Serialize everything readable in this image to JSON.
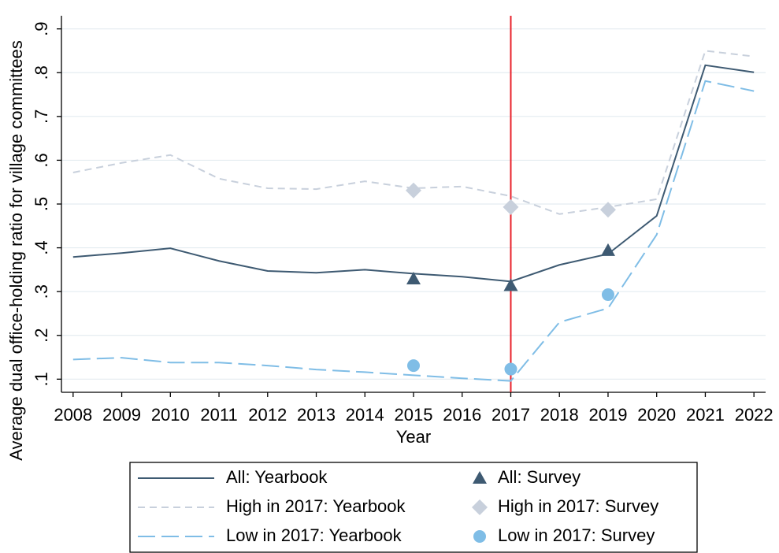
{
  "chart_data": {
    "type": "line",
    "x_label": "Year",
    "y_label": "Average dual office-holding ratio for village committees",
    "x": [
      2008,
      2009,
      2010,
      2011,
      2012,
      2013,
      2014,
      2015,
      2016,
      2017,
      2018,
      2019,
      2020,
      2021,
      2022
    ],
    "xlim": [
      2007.76,
      2022.24
    ],
    "xticks": [
      2008,
      2009,
      2010,
      2011,
      2012,
      2013,
      2014,
      2015,
      2016,
      2017,
      2018,
      2019,
      2020,
      2021,
      2022
    ],
    "ylim": [
      0.07,
      0.93
    ],
    "yticks": [
      {
        "value": 0.1,
        "label": ".1"
      },
      {
        "value": 0.2,
        "label": ".2"
      },
      {
        "value": 0.3,
        "label": ".3"
      },
      {
        "value": 0.4,
        "label": ".4"
      },
      {
        "value": 0.5,
        "label": ".5"
      },
      {
        "value": 0.6,
        "label": ".6"
      },
      {
        "value": 0.7,
        "label": ".7"
      },
      {
        "value": 0.8,
        "label": ".8"
      },
      {
        "value": 0.9,
        "label": ".9"
      }
    ],
    "grid": true,
    "vline": 2017,
    "vline_color": "#e8202a",
    "series": [
      {
        "name": "All: Yearbook",
        "color": "#3e5a72",
        "dash": "none",
        "values": [
          0.379,
          0.388,
          0.399,
          0.37,
          0.347,
          0.343,
          0.35,
          0.341,
          0.334,
          0.323,
          0.361,
          0.386,
          0.473,
          0.817,
          0.801
        ]
      },
      {
        "name": "High in 2017: Yearbook",
        "color": "#c8d0dc",
        "dash": "9 6",
        "values": [
          0.572,
          0.594,
          0.612,
          0.558,
          0.536,
          0.534,
          0.552,
          0.536,
          0.54,
          0.518,
          0.477,
          0.493,
          0.511,
          0.85,
          0.837
        ]
      },
      {
        "name": "Low in 2017: Yearbook",
        "color": "#7fbde6",
        "dash": "22 8",
        "values": [
          0.145,
          0.149,
          0.138,
          0.138,
          0.131,
          0.122,
          0.116,
          0.109,
          0.102,
          0.096,
          0.23,
          0.262,
          0.43,
          0.781,
          0.758
        ]
      },
      {
        "name": "All: Survey",
        "color": "#3e5a72",
        "marker": "triangle",
        "x": [
          2015,
          2017,
          2019
        ],
        "values": [
          0.329,
          0.314,
          0.394
        ]
      },
      {
        "name": "High in 2017: Survey",
        "color": "#c8d0dc",
        "marker": "diamond",
        "x": [
          2015,
          2017,
          2019
        ],
        "values": [
          0.531,
          0.493,
          0.487
        ]
      },
      {
        "name": "Low in 2017: Survey",
        "color": "#7fbde6",
        "marker": "circle",
        "x": [
          2015,
          2017,
          2019
        ],
        "values": [
          0.131,
          0.123,
          0.293
        ]
      }
    ]
  }
}
